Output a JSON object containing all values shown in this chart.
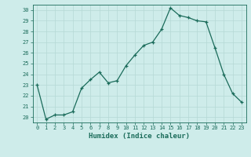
{
  "x": [
    0,
    1,
    2,
    3,
    4,
    5,
    6,
    7,
    8,
    9,
    10,
    11,
    12,
    13,
    14,
    15,
    16,
    17,
    18,
    19,
    20,
    21,
    22,
    23
  ],
  "y": [
    23.0,
    19.8,
    20.2,
    20.2,
    20.5,
    22.7,
    23.5,
    24.2,
    23.2,
    23.4,
    24.8,
    25.8,
    26.7,
    27.0,
    28.2,
    30.2,
    29.5,
    29.3,
    29.0,
    28.9,
    26.5,
    24.0,
    22.2,
    21.4
  ],
  "xlabel": "Humidex (Indice chaleur)",
  "xlim": [
    -0.5,
    23.5
  ],
  "ylim": [
    19.5,
    30.5
  ],
  "yticks": [
    20,
    21,
    22,
    23,
    24,
    25,
    26,
    27,
    28,
    29,
    30
  ],
  "xticks": [
    0,
    1,
    2,
    3,
    4,
    5,
    6,
    7,
    8,
    9,
    10,
    11,
    12,
    13,
    14,
    15,
    16,
    17,
    18,
    19,
    20,
    21,
    22,
    23
  ],
  "line_color": "#1a6b5a",
  "marker_color": "#1a6b5a",
  "bg_color": "#ceecea",
  "grid_color": "#b5d9d5",
  "tick_label_color": "#1a6b5a",
  "label_color": "#1a6b5a",
  "tick_fontsize": 5.0,
  "xlabel_fontsize": 6.5
}
